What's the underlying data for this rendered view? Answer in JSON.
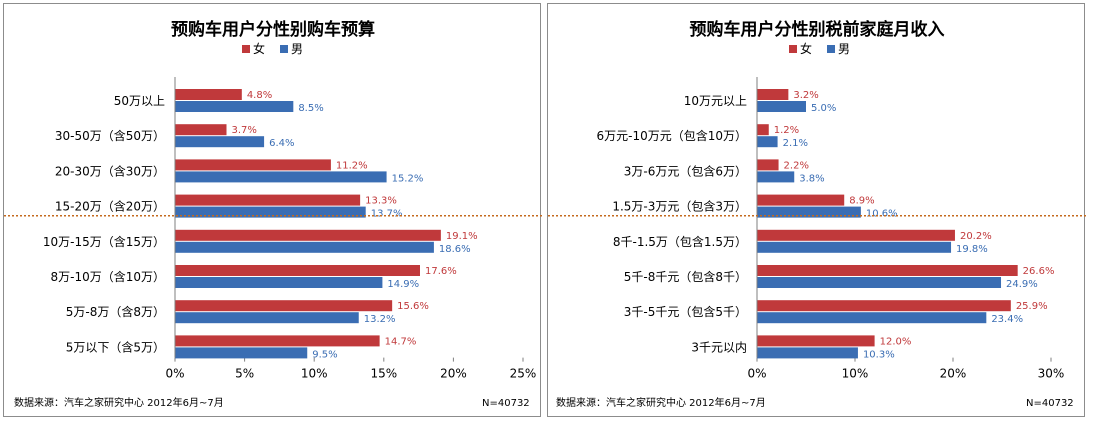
{
  "colors": {
    "female": "#c0393b",
    "male": "#3a6db3",
    "divider": "#c46a1e"
  },
  "chart_data": [
    {
      "type": "bar",
      "orientation": "horizontal",
      "title": "预购车用户分性别购车预算",
      "legend": [
        "女",
        "男"
      ],
      "categories": [
        "50万以上",
        "30-50万（含50万）",
        "20-30万（含30万）",
        "15-20万（含20万）",
        "10万-15万（含15万）",
        "8万-10万（含10万）",
        "5万-8万（含8万）",
        "5万以下（含5万）"
      ],
      "series": [
        {
          "name": "女",
          "values": [
            4.8,
            3.7,
            11.2,
            13.3,
            19.1,
            17.6,
            15.6,
            14.7
          ],
          "labels": [
            "4.8%",
            "3.7%",
            "11.2%",
            "13.3%",
            "19.1%",
            "17.6%",
            "15.6%",
            "14.7%"
          ]
        },
        {
          "name": "男",
          "values": [
            8.5,
            6.4,
            15.2,
            13.7,
            18.6,
            14.9,
            13.2,
            9.5
          ],
          "labels": [
            "8.5%",
            "6.4%",
            "15.2%",
            "13.7%",
            "18.6%",
            "14.9%",
            "13.2%",
            "9.5%"
          ]
        }
      ],
      "xlim": [
        0,
        25
      ],
      "xticks": [
        0,
        5,
        10,
        15,
        20,
        25
      ],
      "xtick_labels": [
        "0%",
        "5%",
        "10%",
        "15%",
        "20%",
        "25%"
      ],
      "divider_after_category": 3,
      "source": "数据来源：汽车之家研究中心  2012年6月~7月",
      "sample": "N=40732"
    },
    {
      "type": "bar",
      "orientation": "horizontal",
      "title": "预购车用户分性别税前家庭月收入",
      "legend": [
        "女",
        "男"
      ],
      "categories": [
        "10万元以上",
        "6万元-10万元（包含10万）",
        "3万-6万元（包含6万）",
        "1.5万-3万元（包含3万）",
        "8千-1.5万（包含1.5万）",
        "5千-8千元（包含8千）",
        "3千-5千元（包含5千）",
        "3千元以内"
      ],
      "series": [
        {
          "name": "女",
          "values": [
            3.2,
            1.2,
            2.2,
            8.9,
            20.2,
            26.6,
            25.9,
            12.0
          ],
          "labels": [
            "3.2%",
            "1.2%",
            "2.2%",
            "8.9%",
            "20.2%",
            "26.6%",
            "25.9%",
            "12.0%"
          ]
        },
        {
          "name": "男",
          "values": [
            5.0,
            2.1,
            3.8,
            10.6,
            19.8,
            24.9,
            23.4,
            10.3
          ],
          "labels": [
            "5.0%",
            "2.1%",
            "3.8%",
            "10.6%",
            "19.8%",
            "24.9%",
            "23.4%",
            "10.3%"
          ]
        }
      ],
      "xlim": [
        0,
        30
      ],
      "xticks": [
        0,
        10,
        20,
        30
      ],
      "xtick_labels": [
        "0%",
        "10%",
        "20%",
        "30%"
      ],
      "divider_after_category": 3,
      "source": "数据来源：汽车之家研究中心  2012年6月~7月",
      "sample": "N=40732"
    }
  ]
}
